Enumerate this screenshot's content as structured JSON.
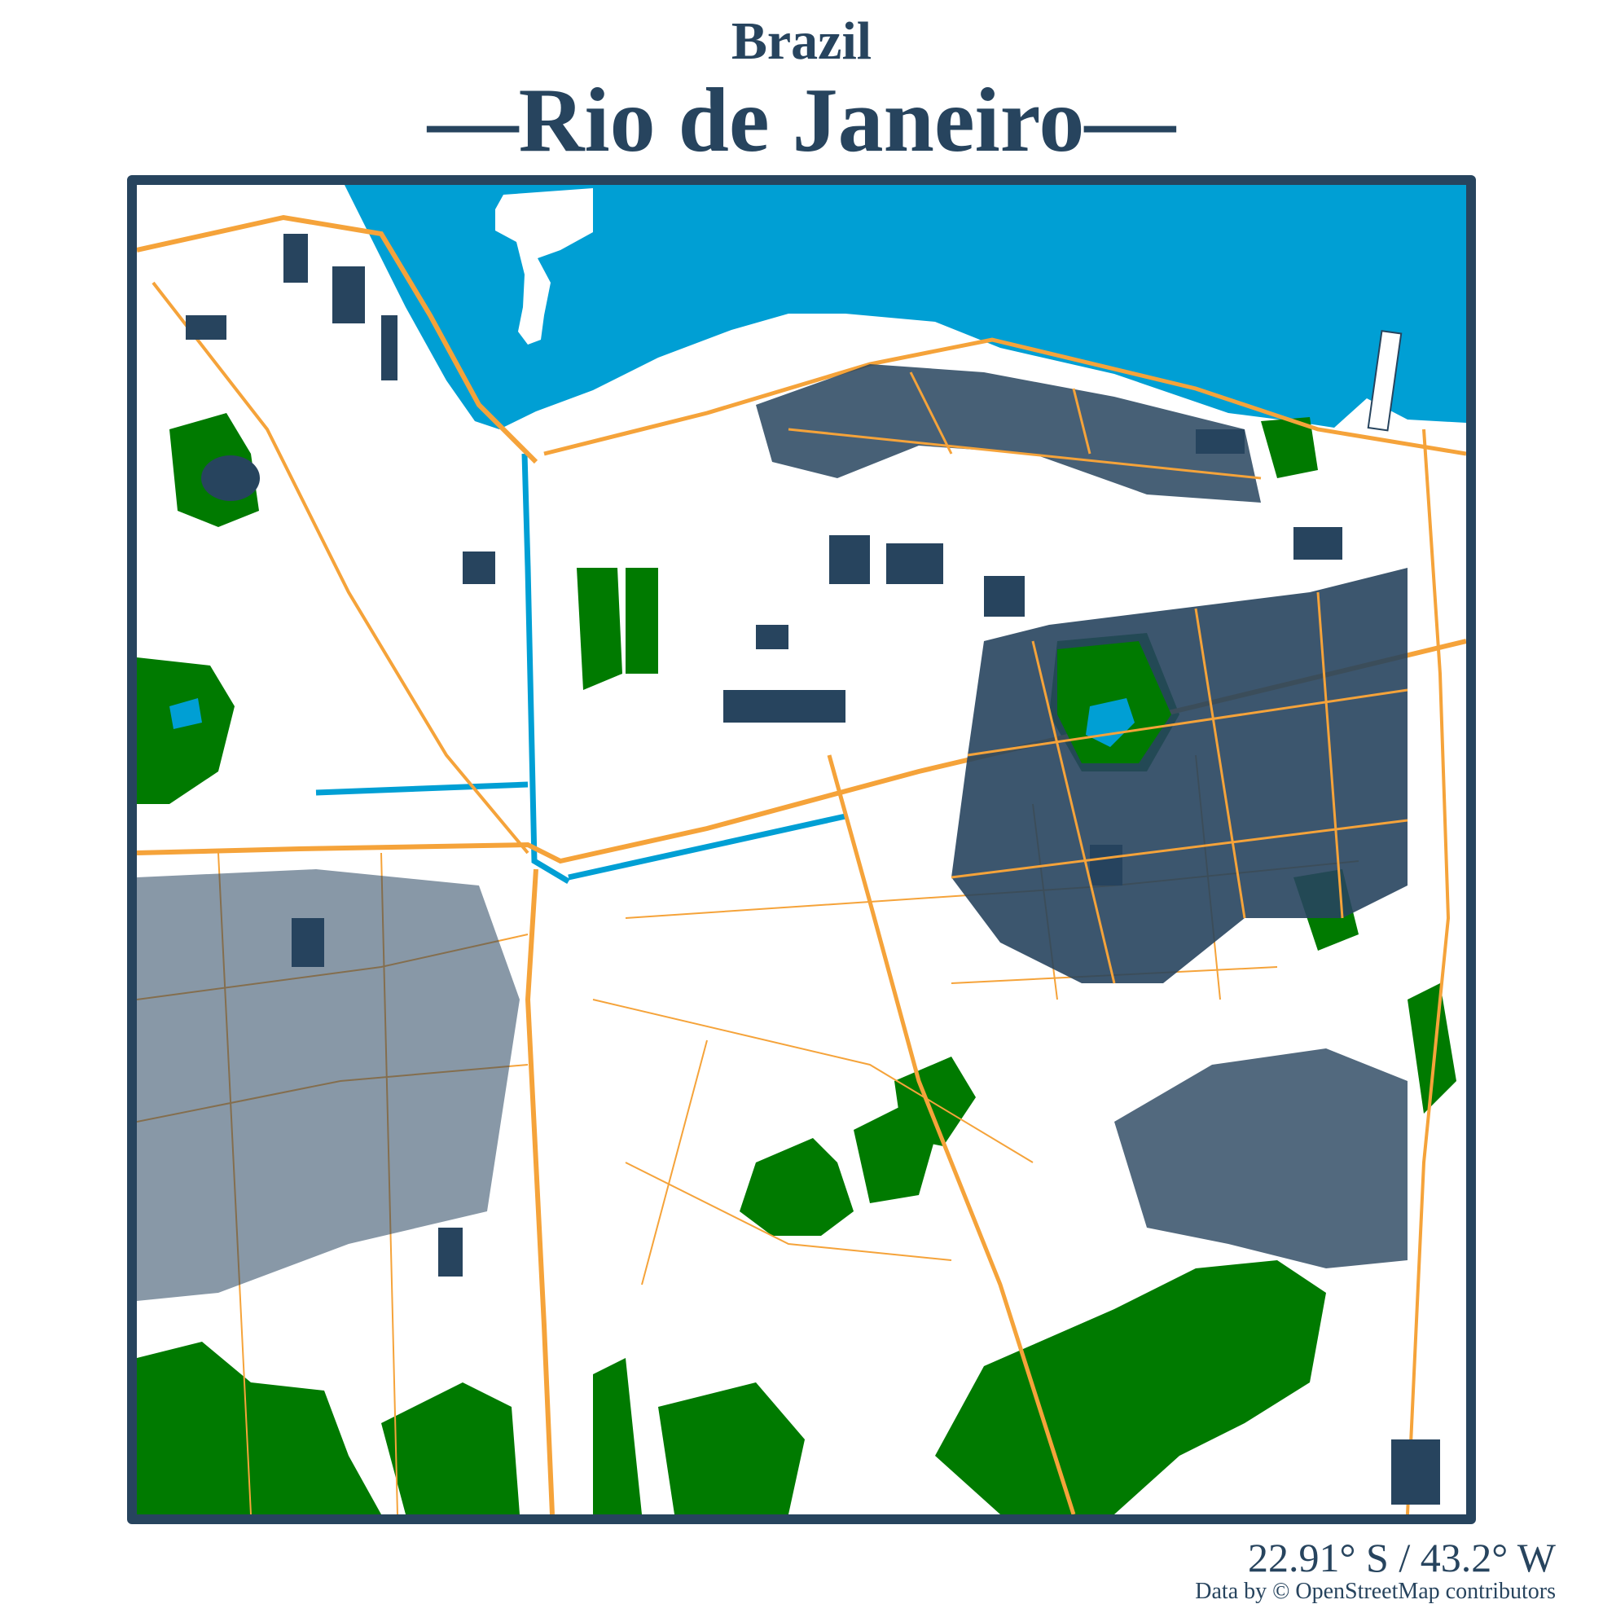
{
  "header": {
    "country": "Brazil",
    "city": "—Rio de Janeiro—"
  },
  "footer": {
    "coordinates": "22.91° S / 43.2° W",
    "attribution": "Data by © OpenStreetMap contributors"
  },
  "colors": {
    "frame": "#27445e",
    "text": "#27445e",
    "water": "#009fd4",
    "park": "#007a00",
    "building": "#27445e",
    "road": "#f5a33a",
    "background": "#ffffff"
  }
}
